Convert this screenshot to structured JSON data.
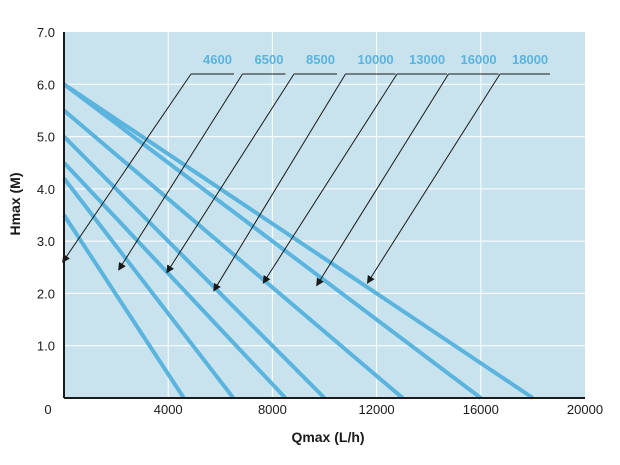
{
  "chart_data": {
    "type": "line",
    "xlabel": "Qmax (L/h)",
    "ylabel": "Hmax (M)",
    "xlim": [
      0,
      20000
    ],
    "ylim": [
      0,
      7
    ],
    "x_ticks": [
      "0",
      "4000",
      "8000",
      "12000",
      "16000",
      "20000"
    ],
    "y_ticks": [
      "1.0",
      "2.0",
      "3.0",
      "4.0",
      "5.0",
      "6.0",
      "7.0"
    ],
    "grid": true,
    "colors": {
      "plot_bg": "#c9e3ee",
      "line": "#5ab4de",
      "grid": "#ffffff",
      "label": "#5ab4de",
      "arrow": "#1a1a1a"
    },
    "series": [
      {
        "name": "4600",
        "x": [
          0,
          4600
        ],
        "y": [
          3.5,
          0
        ],
        "arrow_target": [
          -50,
          2.6
        ]
      },
      {
        "name": "6500",
        "x": [
          0,
          6500
        ],
        "y": [
          4.2,
          0
        ],
        "arrow_target": [
          2100,
          2.45
        ]
      },
      {
        "name": "8500",
        "x": [
          0,
          8500
        ],
        "y": [
          4.5,
          0
        ],
        "arrow_target": [
          3950,
          2.4
        ]
      },
      {
        "name": "10000",
        "x": [
          0,
          10000
        ],
        "y": [
          5.0,
          0
        ],
        "arrow_target": [
          5750,
          2.05
        ]
      },
      {
        "name": "13000",
        "x": [
          0,
          13000
        ],
        "y": [
          5.5,
          0
        ],
        "arrow_target": [
          7650,
          2.2
        ]
      },
      {
        "name": "16000",
        "x": [
          0,
          16000
        ],
        "y": [
          6.0,
          0
        ],
        "arrow_target": [
          9700,
          2.15
        ]
      },
      {
        "name": "18000",
        "x": [
          0,
          18000
        ],
        "y": [
          6.0,
          0
        ],
        "arrow_target": [
          11650,
          2.2
        ]
      }
    ]
  }
}
